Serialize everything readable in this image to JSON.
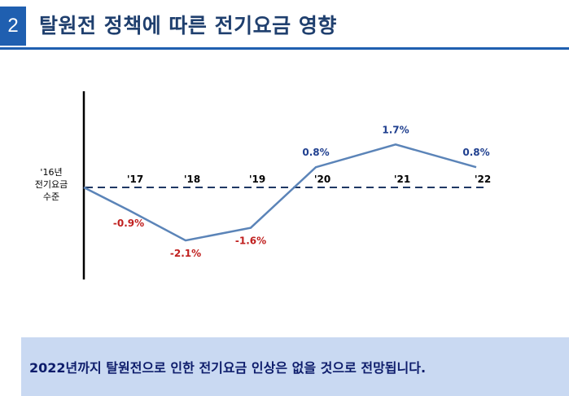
{
  "slide": {
    "number": "2",
    "title": "탈원전 정책에 따른 전기요금 영향"
  },
  "chart_data": {
    "type": "line",
    "baseline_label": [
      "'16년",
      "전기요금",
      "수준"
    ],
    "categories": [
      "'16",
      "'17",
      "'18",
      "'19",
      "'20",
      "'21",
      "'22"
    ],
    "tick_labels": [
      "'17",
      "'18",
      "'19",
      "'20",
      "'21",
      "'22"
    ],
    "values": [
      0,
      -0.9,
      -2.1,
      -1.6,
      0.8,
      1.7,
      0.8
    ],
    "value_labels": [
      "",
      "-0.9%",
      "-2.1%",
      "-1.6%",
      "0.8%",
      "1.7%",
      "0.8%"
    ],
    "baseline_value": 0,
    "grid": false,
    "colors": {
      "line": "#5b84b8",
      "baseline": "#1f3864",
      "positive_label": "#1f3f8f",
      "negative_label": "#c0201f",
      "axis": "#000000"
    }
  },
  "conclusion": {
    "text": "2022년까지 탈원전으로 인한 전기요금 인상은 없을 것으로 전망됩니다."
  }
}
